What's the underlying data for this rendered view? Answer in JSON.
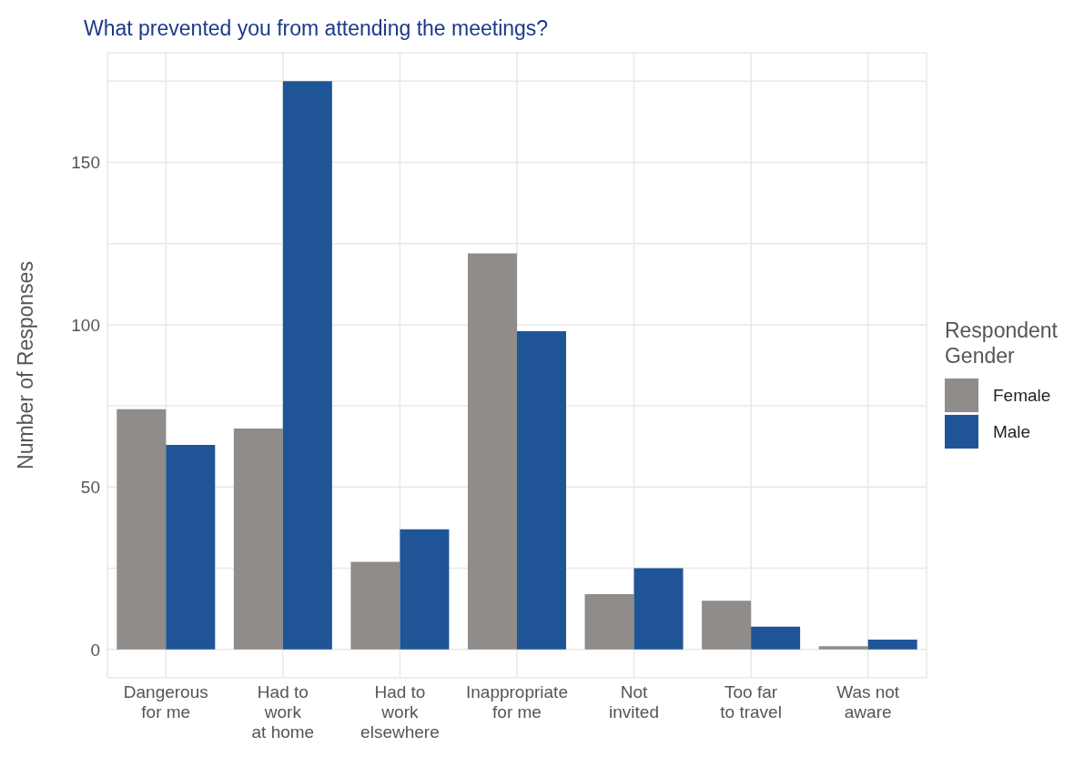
{
  "chart_data": {
    "type": "bar",
    "title": "What prevented you from attending the meetings?",
    "ylabel": "Number of Responses",
    "legend_title": "Respondent\nGender",
    "categories": [
      "Dangerous\nfor me",
      "Had to\nwork\nat home",
      "Had to\nwork\nelsewhere",
      "Inappropriate\nfor me",
      "Not\ninvited",
      "Too far\nto travel",
      "Was not\naware"
    ],
    "series": [
      {
        "name": "Female",
        "color": "#8f8c89",
        "values": [
          74,
          68,
          27,
          122,
          17,
          15,
          1
        ]
      },
      {
        "name": "Male",
        "color": "#1f5597",
        "values": [
          63,
          175,
          37,
          98,
          25,
          7,
          3
        ]
      }
    ],
    "ylim": [
      -8.75,
      183.75
    ],
    "yticks": [
      0,
      {
        "value": 25,
        "label": null
      },
      50,
      {
        "value": 75,
        "label": null
      },
      100,
      {
        "value": 125,
        "label": null
      },
      150,
      {
        "value": 175,
        "label": null
      }
    ],
    "grid": true,
    "legend": "right"
  }
}
